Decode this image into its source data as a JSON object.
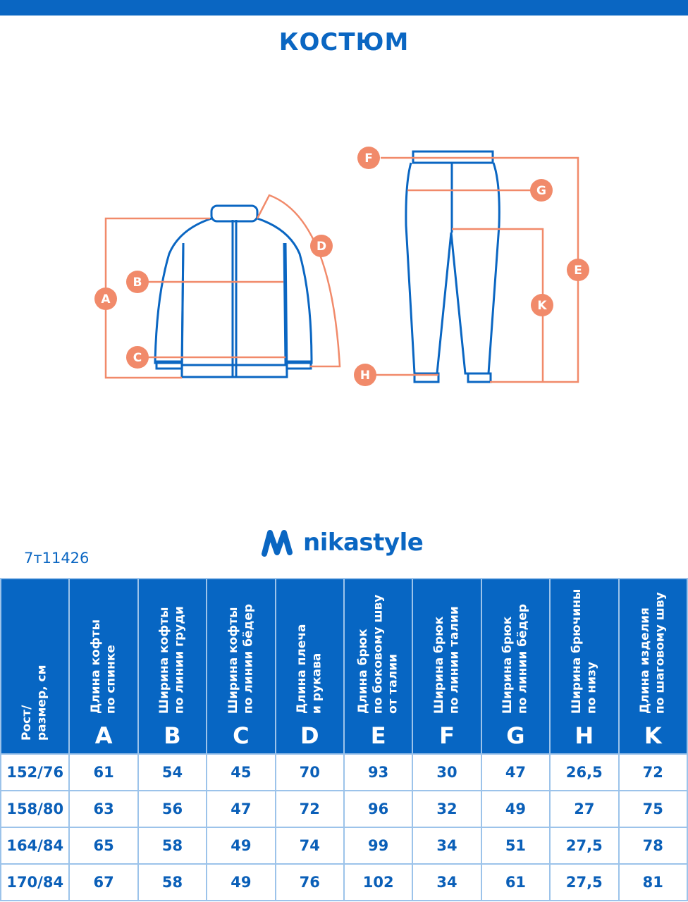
{
  "title": "КОСТЮМ",
  "brand": "nikastyle",
  "article": "7т11426",
  "colors": {
    "blue": "#0a66c2",
    "accent": "#f18a6a"
  },
  "diagram_labels": [
    "A",
    "B",
    "C",
    "D",
    "E",
    "F",
    "G",
    "H",
    "K"
  ],
  "table": {
    "headers": [
      {
        "text": "Рост/\nразмер, см",
        "letter": ""
      },
      {
        "text": "Длина кофты\nпо спинке",
        "letter": "A"
      },
      {
        "text": "Ширина кофты\nпо линии груди",
        "letter": "B"
      },
      {
        "text": "Ширина кофты\nпо линии бёдер",
        "letter": "C"
      },
      {
        "text": "Длина плеча\nи рукава",
        "letter": "D"
      },
      {
        "text": "Длина брюк\nпо боковому шву\nот талии",
        "letter": "E"
      },
      {
        "text": "Ширина брюк\nпо линии талии",
        "letter": "F"
      },
      {
        "text": "Ширина брюк\nпо линии бёдер",
        "letter": "G"
      },
      {
        "text": "Ширина брючины\nпо низу",
        "letter": "H"
      },
      {
        "text": "Длина изделия\nпо шаговому шву",
        "letter": "K"
      }
    ],
    "rows": [
      [
        "152/76",
        "61",
        "54",
        "45",
        "70",
        "93",
        "30",
        "47",
        "26,5",
        "72"
      ],
      [
        "158/80",
        "63",
        "56",
        "47",
        "72",
        "96",
        "32",
        "49",
        "27",
        "75"
      ],
      [
        "164/84",
        "65",
        "58",
        "49",
        "74",
        "99",
        "34",
        "51",
        "27,5",
        "78"
      ],
      [
        "170/84",
        "67",
        "58",
        "49",
        "76",
        "102",
        "34",
        "61",
        "27,5",
        "81"
      ]
    ]
  }
}
